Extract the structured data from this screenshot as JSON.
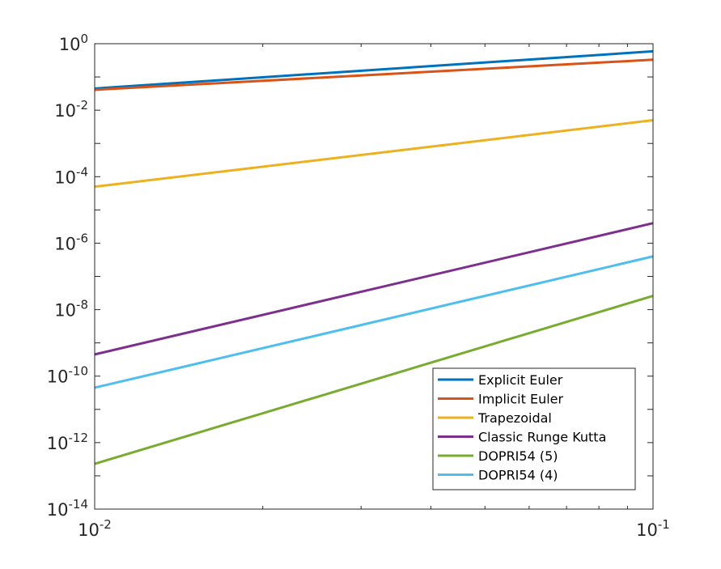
{
  "chart_data": {
    "type": "line",
    "title": "",
    "xlabel": "",
    "ylabel": "",
    "x_scale": "log",
    "y_scale": "log",
    "xlim": [
      0.01,
      0.1
    ],
    "ylim": [
      1e-14,
      1
    ],
    "grid": false,
    "legend_position": "bottom-right",
    "x_tick_labels": [
      {
        "value": 0.01,
        "base": "10",
        "exp": "-2"
      },
      {
        "value": 0.1,
        "base": "10",
        "exp": "-1"
      }
    ],
    "y_tick_labels": [
      {
        "value": 1,
        "base": "10",
        "exp": "0"
      },
      {
        "value": 0.01,
        "base": "10",
        "exp": "-2"
      },
      {
        "value": 0.0001,
        "base": "10",
        "exp": "-4"
      },
      {
        "value": 1e-06,
        "base": "10",
        "exp": "-6"
      },
      {
        "value": 1e-08,
        "base": "10",
        "exp": "-8"
      },
      {
        "value": 1e-10,
        "base": "10",
        "exp": "-10"
      },
      {
        "value": 1e-12,
        "base": "10",
        "exp": "-12"
      },
      {
        "value": 1e-14,
        "base": "10",
        "exp": "-14"
      }
    ],
    "series": [
      {
        "name": "Explicit Euler",
        "color": "#0072BD",
        "x": [
          0.01,
          0.1
        ],
        "y": [
          0.045,
          0.59
        ]
      },
      {
        "name": "Implicit Euler",
        "color": "#D95319",
        "x": [
          0.01,
          0.1
        ],
        "y": [
          0.041,
          0.33
        ]
      },
      {
        "name": "Trapezoidal",
        "color": "#EDB120",
        "x": [
          0.01,
          0.1
        ],
        "y": [
          5e-05,
          0.005
        ]
      },
      {
        "name": "Classic Runge Kutta",
        "color": "#7E2F8E",
        "x": [
          0.01,
          0.1
        ],
        "y": [
          4.5e-10,
          4e-06
        ]
      },
      {
        "name": "DOPRI54 (5)",
        "color": "#77AC30",
        "x": [
          0.01,
          0.1
        ],
        "y": [
          2.3e-13,
          2.6e-08
        ]
      },
      {
        "name": "DOPRI54 (4)",
        "color": "#4DBEEE",
        "x": [
          0.01,
          0.1
        ],
        "y": [
          4.5e-11,
          4e-07
        ]
      }
    ]
  }
}
